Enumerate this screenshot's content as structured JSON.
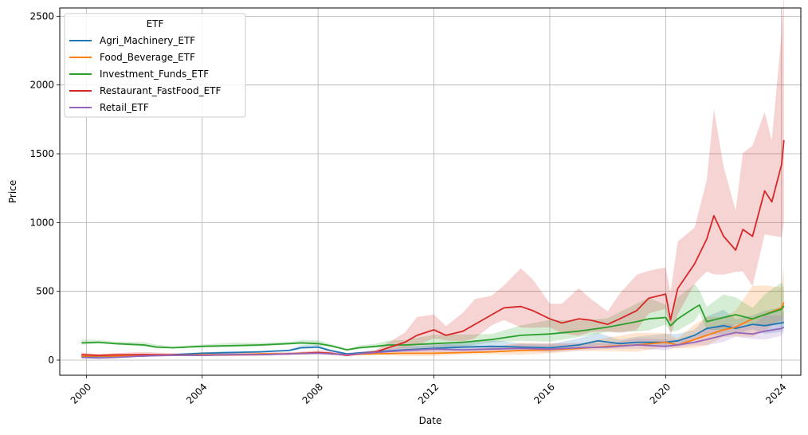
{
  "chart_data": {
    "type": "line",
    "title": "",
    "xlabel": "Date",
    "ylabel": "Price",
    "x_ticks": [
      "2000",
      "2004",
      "2008",
      "2012",
      "2016",
      "2020",
      "2024"
    ],
    "y_ticks": [
      "0",
      "500",
      "1000",
      "1500",
      "2000",
      "2500"
    ],
    "xlim": [
      "1999-02-01",
      "2024-09-01"
    ],
    "ylim": [
      -110,
      2560
    ],
    "grid": true,
    "legend": {
      "title": "ETF",
      "placement": "top-left"
    },
    "series": [
      {
        "name": "Agri_Machinery_ETF",
        "color": "#1f77b4",
        "points": [
          [
            "1999-11",
            25
          ],
          [
            "2001-01",
            28
          ],
          [
            "2002-01",
            30
          ],
          [
            "2003-01",
            40
          ],
          [
            "2004-01",
            50
          ],
          [
            "2005-01",
            55
          ],
          [
            "2006-01",
            60
          ],
          [
            "2007-01",
            70
          ],
          [
            "2007-06",
            90
          ],
          [
            "2008-01",
            95
          ],
          [
            "2008-06",
            70
          ],
          [
            "2009-01",
            45
          ],
          [
            "2010-01",
            60
          ],
          [
            "2011-01",
            75
          ],
          [
            "2012-01",
            85
          ],
          [
            "2013-01",
            95
          ],
          [
            "2014-01",
            100
          ],
          [
            "2015-01",
            95
          ],
          [
            "2016-01",
            90
          ],
          [
            "2017-01",
            110
          ],
          [
            "2017-09",
            140
          ],
          [
            "2018-06",
            120
          ],
          [
            "2019-01",
            130
          ],
          [
            "2020-01",
            130
          ],
          [
            "2020-06",
            140
          ],
          [
            "2021-01",
            180
          ],
          [
            "2021-06",
            230
          ],
          [
            "2022-01",
            250
          ],
          [
            "2022-06",
            230
          ],
          [
            "2023-01",
            260
          ],
          [
            "2023-06",
            250
          ],
          [
            "2024-01",
            270
          ],
          [
            "2024-02",
            275
          ]
        ],
        "band": [
          0.15,
          0.35
        ]
      },
      {
        "name": "Food_Beverage_ETF",
        "color": "#ff7f0e",
        "points": [
          [
            "1999-11",
            30
          ],
          [
            "2001-01",
            30
          ],
          [
            "2002-01",
            35
          ],
          [
            "2003-01",
            35
          ],
          [
            "2004-01",
            40
          ],
          [
            "2005-01",
            40
          ],
          [
            "2006-01",
            45
          ],
          [
            "2007-01",
            45
          ],
          [
            "2008-01",
            50
          ],
          [
            "2009-01",
            40
          ],
          [
            "2010-01",
            45
          ],
          [
            "2011-01",
            50
          ],
          [
            "2012-01",
            50
          ],
          [
            "2013-01",
            55
          ],
          [
            "2014-01",
            60
          ],
          [
            "2015-01",
            70
          ],
          [
            "2016-01",
            75
          ],
          [
            "2017-01",
            85
          ],
          [
            "2018-01",
            100
          ],
          [
            "2019-01",
            110
          ],
          [
            "2020-01",
            130
          ],
          [
            "2020-06",
            110
          ],
          [
            "2021-01",
            150
          ],
          [
            "2021-06",
            180
          ],
          [
            "2022-01",
            220
          ],
          [
            "2022-06",
            240
          ],
          [
            "2023-01",
            300
          ],
          [
            "2023-06",
            330
          ],
          [
            "2024-01",
            380
          ],
          [
            "2024-02",
            420
          ]
        ],
        "band": [
          0.2,
          0.6
        ]
      },
      {
        "name": "Investment_Funds_ETF",
        "color": "#2ca02c",
        "points": [
          [
            "1999-11",
            125
          ],
          [
            "2000-06",
            130
          ],
          [
            "2001-01",
            120
          ],
          [
            "2002-01",
            110
          ],
          [
            "2002-06",
            95
          ],
          [
            "2003-01",
            90
          ],
          [
            "2004-01",
            100
          ],
          [
            "2005-01",
            105
          ],
          [
            "2006-01",
            110
          ],
          [
            "2007-01",
            120
          ],
          [
            "2007-06",
            125
          ],
          [
            "2008-01",
            120
          ],
          [
            "2008-06",
            105
          ],
          [
            "2009-01",
            75
          ],
          [
            "2009-06",
            90
          ],
          [
            "2010-01",
            100
          ],
          [
            "2010-06",
            110
          ],
          [
            "2011-01",
            110
          ],
          [
            "2012-01",
            120
          ],
          [
            "2013-01",
            130
          ],
          [
            "2014-01",
            150
          ],
          [
            "2015-01",
            180
          ],
          [
            "2016-01",
            190
          ],
          [
            "2017-01",
            210
          ],
          [
            "2018-01",
            240
          ],
          [
            "2019-01",
            280
          ],
          [
            "2019-06",
            300
          ],
          [
            "2020-01",
            310
          ],
          [
            "2020-03",
            250
          ],
          [
            "2020-06",
            300
          ],
          [
            "2021-01",
            380
          ],
          [
            "2021-03",
            400
          ],
          [
            "2021-06",
            280
          ],
          [
            "2022-01",
            310
          ],
          [
            "2022-06",
            330
          ],
          [
            "2023-01",
            300
          ],
          [
            "2023-06",
            330
          ],
          [
            "2024-01",
            370
          ],
          [
            "2024-02",
            395
          ]
        ],
        "band": [
          0.15,
          0.4
        ]
      },
      {
        "name": "Restaurant_FastFood_ETF",
        "color": "#d62728",
        "points": [
          [
            "1999-11",
            40
          ],
          [
            "2000-06",
            35
          ],
          [
            "2001-01",
            38
          ],
          [
            "2002-01",
            40
          ],
          [
            "2003-01",
            38
          ],
          [
            "2004-01",
            35
          ],
          [
            "2005-01",
            38
          ],
          [
            "2006-01",
            40
          ],
          [
            "2007-01",
            45
          ],
          [
            "2008-01",
            55
          ],
          [
            "2008-06",
            50
          ],
          [
            "2009-01",
            35
          ],
          [
            "2010-01",
            60
          ],
          [
            "2011-01",
            130
          ],
          [
            "2011-06",
            180
          ],
          [
            "2012-01",
            220
          ],
          [
            "2012-06",
            180
          ],
          [
            "2013-01",
            210
          ],
          [
            "2013-06",
            260
          ],
          [
            "2014-01",
            330
          ],
          [
            "2014-06",
            380
          ],
          [
            "2015-01",
            390
          ],
          [
            "2015-06",
            360
          ],
          [
            "2016-01",
            300
          ],
          [
            "2016-06",
            270
          ],
          [
            "2017-01",
            300
          ],
          [
            "2017-06",
            290
          ],
          [
            "2018-01",
            260
          ],
          [
            "2018-06",
            300
          ],
          [
            "2019-01",
            360
          ],
          [
            "2019-06",
            450
          ],
          [
            "2020-01",
            480
          ],
          [
            "2020-03",
            290
          ],
          [
            "2020-06",
            520
          ],
          [
            "2021-01",
            700
          ],
          [
            "2021-06",
            880
          ],
          [
            "2021-09",
            1050
          ],
          [
            "2022-01",
            900
          ],
          [
            "2022-06",
            800
          ],
          [
            "2022-09",
            950
          ],
          [
            "2023-01",
            900
          ],
          [
            "2023-06",
            1230
          ],
          [
            "2023-09",
            1150
          ],
          [
            "2024-01",
            1420
          ],
          [
            "2024-02",
            1600
          ]
        ],
        "band": [
          0.35,
          0.55
        ]
      },
      {
        "name": "Retail_ETF",
        "color": "#9467bd",
        "points": [
          [
            "1999-11",
            20
          ],
          [
            "2000-06",
            15
          ],
          [
            "2001-01",
            20
          ],
          [
            "2002-01",
            30
          ],
          [
            "2003-01",
            35
          ],
          [
            "2004-01",
            35
          ],
          [
            "2005-01",
            40
          ],
          [
            "2006-01",
            40
          ],
          [
            "2007-01",
            45
          ],
          [
            "2008-01",
            50
          ],
          [
            "2009-01",
            40
          ],
          [
            "2010-01",
            55
          ],
          [
            "2011-01",
            70
          ],
          [
            "2012-01",
            80
          ],
          [
            "2013-01",
            75
          ],
          [
            "2014-01",
            80
          ],
          [
            "2015-01",
            85
          ],
          [
            "2016-01",
            80
          ],
          [
            "2017-01",
            90
          ],
          [
            "2018-01",
            95
          ],
          [
            "2019-01",
            110
          ],
          [
            "2020-01",
            100
          ],
          [
            "2020-06",
            110
          ],
          [
            "2021-01",
            130
          ],
          [
            "2021-06",
            150
          ],
          [
            "2022-01",
            180
          ],
          [
            "2022-06",
            200
          ],
          [
            "2023-01",
            190
          ],
          [
            "2023-06",
            210
          ],
          [
            "2024-01",
            230
          ],
          [
            "2024-02",
            240
          ]
        ],
        "band": [
          0.2,
          0.4
        ]
      }
    ]
  }
}
